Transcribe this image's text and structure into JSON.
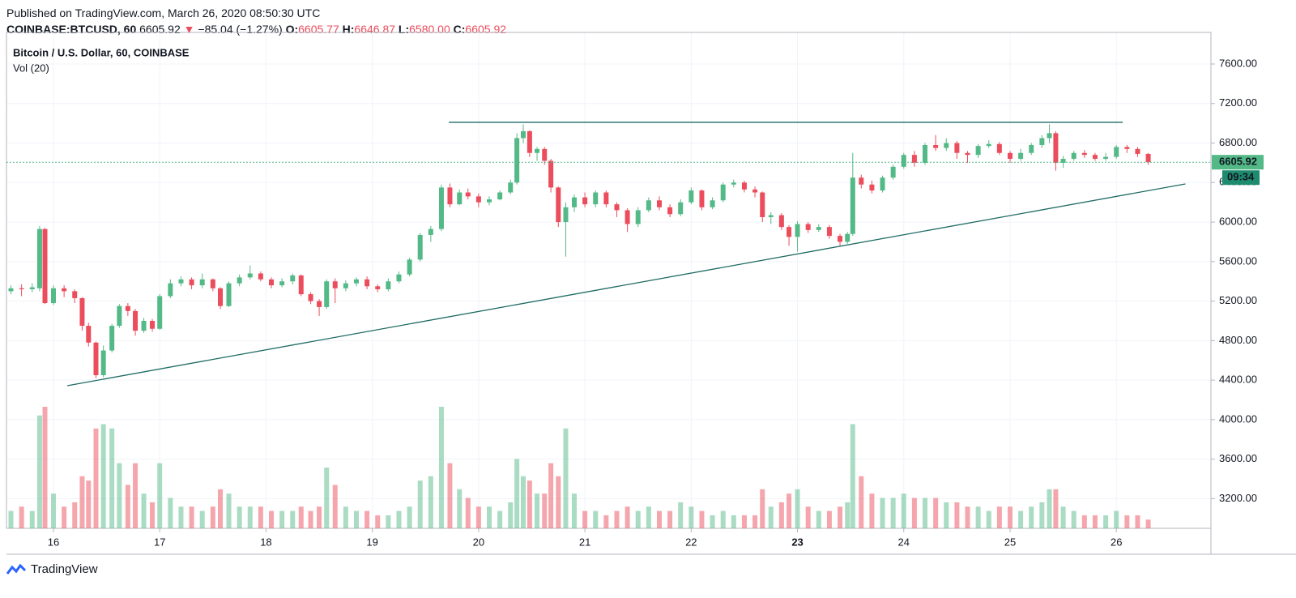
{
  "header": {
    "published": "Published on TradingView.com, March 26, 2020 08:50:30 UTC",
    "symbol": "COINBASE:BTCUSD, 60",
    "price": "6605.92",
    "arrow": "▼",
    "change": "−85.04 (−1.27%)",
    "o_label": "O:",
    "o": "6605.77",
    "h_label": "H:",
    "h": "6646.87",
    "l_label": "L:",
    "l": "6580.00",
    "c_label": "C:",
    "c": "6605.92"
  },
  "footer": {
    "brand": "TradingView"
  },
  "chart_data": {
    "type": "candlestick",
    "legend": {
      "title": "Bitcoin / U.S. Dollar, 60, COINBASE",
      "volume": "Vol (20)"
    },
    "up_color": "#53b987",
    "down_color": "#eb4d5c",
    "line_color": "#1e6b63",
    "xlim": [
      15.558,
      26.89
    ],
    "xticks": [
      16,
      17,
      18,
      19,
      20,
      21,
      22,
      23,
      24,
      25,
      26
    ],
    "emphasized_xticks": [
      23
    ],
    "ylim": [
      2900,
      7920
    ],
    "yticks": [
      {
        "value": 3200,
        "label": "3200.00"
      },
      {
        "value": 3600,
        "label": "3600.00"
      },
      {
        "value": 4000,
        "label": "4000.00"
      },
      {
        "value": 4400,
        "label": "4400.00"
      },
      {
        "value": 4800,
        "label": "4800.00"
      },
      {
        "value": 5200,
        "label": "5200.00"
      },
      {
        "value": 5600,
        "label": "5600.00"
      },
      {
        "value": 6000,
        "label": "6000.00"
      },
      {
        "value": 6400,
        "label": "6400.00"
      },
      {
        "value": 6800,
        "label": "6800.00"
      },
      {
        "value": 7200,
        "label": "7200.00"
      },
      {
        "value": 7600,
        "label": "7600.00"
      }
    ],
    "grid": true,
    "last_price": {
      "value": 6605.92,
      "label": "6605.92"
    },
    "countdown": "09:34",
    "trendlines": [
      {
        "x": [
          19.72,
          26.06
        ],
        "y": [
          7010,
          7010
        ]
      },
      {
        "x": [
          16.13,
          26.65
        ],
        "y": [
          4344,
          6386
        ]
      }
    ],
    "x": [
      15.6,
      15.7,
      15.8,
      15.87,
      15.92,
      16.0,
      16.1,
      16.2,
      16.27,
      16.33,
      16.4,
      16.47,
      16.55,
      16.62,
      16.7,
      16.77,
      16.85,
      16.93,
      17.0,
      17.1,
      17.2,
      17.3,
      17.4,
      17.5,
      17.57,
      17.65,
      17.75,
      17.85,
      17.95,
      18.05,
      18.15,
      18.25,
      18.33,
      18.42,
      18.5,
      18.57,
      18.65,
      18.75,
      18.85,
      18.95,
      19.05,
      19.15,
      19.25,
      19.35,
      19.45,
      19.55,
      19.65,
      19.73,
      19.82,
      19.9,
      20.0,
      20.1,
      20.2,
      20.3,
      20.36,
      20.42,
      20.48,
      20.55,
      20.62,
      20.68,
      20.75,
      20.82,
      20.9,
      21.0,
      21.1,
      21.2,
      21.3,
      21.4,
      21.5,
      21.6,
      21.7,
      21.8,
      21.9,
      22.0,
      22.1,
      22.2,
      22.3,
      22.4,
      22.5,
      22.6,
      22.67,
      22.75,
      22.85,
      22.92,
      23.0,
      23.1,
      23.2,
      23.3,
      23.4,
      23.47,
      23.52,
      23.6,
      23.7,
      23.8,
      23.9,
      24.0,
      24.1,
      24.2,
      24.3,
      24.4,
      24.5,
      24.6,
      24.7,
      24.8,
      24.9,
      25.0,
      25.1,
      25.2,
      25.3,
      25.37,
      25.43,
      25.5,
      25.6,
      25.7,
      25.8,
      25.9,
      26.0,
      26.1,
      26.2,
      26.3
    ],
    "open": [
      5300,
      5330,
      5320,
      5330,
      5930,
      5180,
      5330,
      5300,
      5230,
      4950,
      4780,
      4450,
      4700,
      4950,
      5150,
      5100,
      4900,
      5000,
      4920,
      5250,
      5380,
      5420,
      5360,
      5420,
      5330,
      5150,
      5380,
      5440,
      5480,
      5420,
      5360,
      5400,
      5460,
      5270,
      5200,
      5140,
      5400,
      5330,
      5380,
      5420,
      5350,
      5320,
      5400,
      5470,
      5620,
      5870,
      5930,
      6350,
      6180,
      6300,
      6260,
      6200,
      6230,
      6300,
      6400,
      6850,
      6920,
      6700,
      6740,
      6620,
      6350,
      6000,
      6150,
      6250,
      6180,
      6300,
      6180,
      6120,
      5980,
      6120,
      6220,
      6150,
      6080,
      6200,
      6320,
      6150,
      6220,
      6380,
      6400,
      6330,
      6300,
      6050,
      6070,
      5950,
      5850,
      5980,
      5920,
      5950,
      5860,
      5800,
      5880,
      6450,
      6380,
      6320,
      6450,
      6560,
      6680,
      6600,
      6780,
      6750,
      6800,
      6700,
      6680,
      6770,
      6790,
      6700,
      6640,
      6700,
      6780,
      6850,
      6900,
      6600,
      6640,
      6700,
      6680,
      6640,
      6660,
      6760,
      6740,
      6690
    ],
    "high": [
      5360,
      5370,
      5380,
      5960,
      5940,
      5360,
      5360,
      5320,
      5240,
      4980,
      4790,
      4750,
      4970,
      5170,
      5180,
      5120,
      5030,
      5020,
      5270,
      5420,
      5450,
      5440,
      5480,
      5430,
      5340,
      5400,
      5470,
      5560,
      5500,
      5440,
      5430,
      5480,
      5470,
      5290,
      5220,
      5420,
      5430,
      5410,
      5440,
      5450,
      5370,
      5430,
      5500,
      5640,
      5890,
      5960,
      6380,
      6390,
      6330,
      6340,
      6290,
      6260,
      6320,
      6430,
      6900,
      6990,
      6930,
      6760,
      6760,
      6640,
      6360,
      6200,
      6280,
      6300,
      6320,
      6320,
      6200,
      6140,
      6150,
      6250,
      6260,
      6180,
      6230,
      6350,
      6330,
      6250,
      6400,
      6430,
      6420,
      6360,
      6310,
      6100,
      6090,
      5970,
      6010,
      6000,
      5980,
      5970,
      5880,
      5900,
      6700,
      6480,
      6420,
      6470,
      6580,
      6700,
      6720,
      6800,
      6880,
      6850,
      6820,
      6720,
      6790,
      6830,
      6810,
      6720,
      6740,
      6800,
      6880,
      6990,
      6920,
      6670,
      6720,
      6730,
      6700,
      6700,
      6780,
      6780,
      6760,
      6700
    ],
    "low": [
      5270,
      5250,
      5290,
      5300,
      5170,
      5160,
      5240,
      5180,
      4900,
      4740,
      4420,
      4430,
      4680,
      4930,
      5050,
      4850,
      4880,
      4890,
      4910,
      5230,
      5350,
      5320,
      5330,
      5300,
      5120,
      5140,
      5350,
      5420,
      5400,
      5330,
      5340,
      5370,
      5250,
      5170,
      5050,
      5120,
      5180,
      5300,
      5350,
      5320,
      5290,
      5300,
      5380,
      5450,
      5600,
      5800,
      5910,
      6150,
      6170,
      6230,
      6150,
      6170,
      6220,
      6280,
      6380,
      6800,
      6660,
      6620,
      6580,
      6300,
      5950,
      5650,
      6100,
      6150,
      6150,
      6150,
      6050,
      5900,
      5950,
      6100,
      6120,
      6050,
      6060,
      6180,
      6120,
      6130,
      6200,
      6350,
      6300,
      6250,
      6000,
      5980,
      5920,
      5760,
      5700,
      5890,
      5900,
      5830,
      5760,
      5780,
      5860,
      6340,
      6290,
      6300,
      6430,
      6540,
      6560,
      6580,
      6720,
      6720,
      6640,
      6600,
      6650,
      6750,
      6680,
      6600,
      6620,
      6680,
      6750,
      6800,
      6520,
      6550,
      6620,
      6650,
      6620,
      6620,
      6640,
      6700,
      6660,
      6580
    ],
    "close": [
      5330,
      5320,
      5340,
      5930,
      5180,
      5330,
      5300,
      5230,
      4950,
      4780,
      4450,
      4700,
      4950,
      5150,
      5100,
      4900,
      5000,
      4920,
      5250,
      5380,
      5420,
      5360,
      5420,
      5330,
      5150,
      5380,
      5440,
      5480,
      5420,
      5360,
      5400,
      5460,
      5270,
      5200,
      5140,
      5400,
      5330,
      5380,
      5420,
      5350,
      5320,
      5400,
      5470,
      5620,
      5870,
      5930,
      6350,
      6180,
      6300,
      6260,
      6200,
      6230,
      6300,
      6400,
      6850,
      6920,
      6700,
      6740,
      6620,
      6350,
      6000,
      6150,
      6250,
      6180,
      6300,
      6180,
      6120,
      5980,
      6120,
      6220,
      6150,
      6080,
      6200,
      6320,
      6150,
      6220,
      6380,
      6400,
      6330,
      6300,
      6050,
      6070,
      5950,
      5850,
      5980,
      5920,
      5950,
      5860,
      5800,
      5880,
      6450,
      6380,
      6320,
      6450,
      6560,
      6680,
      6600,
      6780,
      6750,
      6800,
      6700,
      6680,
      6770,
      6790,
      6700,
      6640,
      6700,
      6780,
      6850,
      6900,
      6600,
      6640,
      6700,
      6680,
      6640,
      6660,
      6760,
      6740,
      6690,
      6605.92
    ],
    "volume": [
      20,
      25,
      20,
      130,
      140,
      40,
      25,
      30,
      60,
      55,
      115,
      120,
      115,
      75,
      50,
      75,
      40,
      30,
      75,
      35,
      25,
      25,
      20,
      25,
      45,
      40,
      25,
      25,
      25,
      20,
      20,
      20,
      25,
      20,
      25,
      70,
      50,
      25,
      20,
      20,
      15,
      15,
      20,
      25,
      55,
      60,
      140,
      75,
      45,
      35,
      25,
      25,
      20,
      30,
      80,
      60,
      55,
      40,
      40,
      75,
      60,
      115,
      40,
      20,
      20,
      15,
      20,
      25,
      20,
      25,
      20,
      20,
      30,
      25,
      20,
      15,
      20,
      15,
      15,
      15,
      45,
      25,
      30,
      40,
      45,
      25,
      20,
      20,
      25,
      30,
      120,
      60,
      40,
      35,
      35,
      40,
      35,
      35,
      35,
      30,
      30,
      25,
      25,
      20,
      25,
      25,
      20,
      25,
      30,
      45,
      45,
      25,
      20,
      15,
      15,
      15,
      20,
      15,
      15,
      10
    ]
  }
}
